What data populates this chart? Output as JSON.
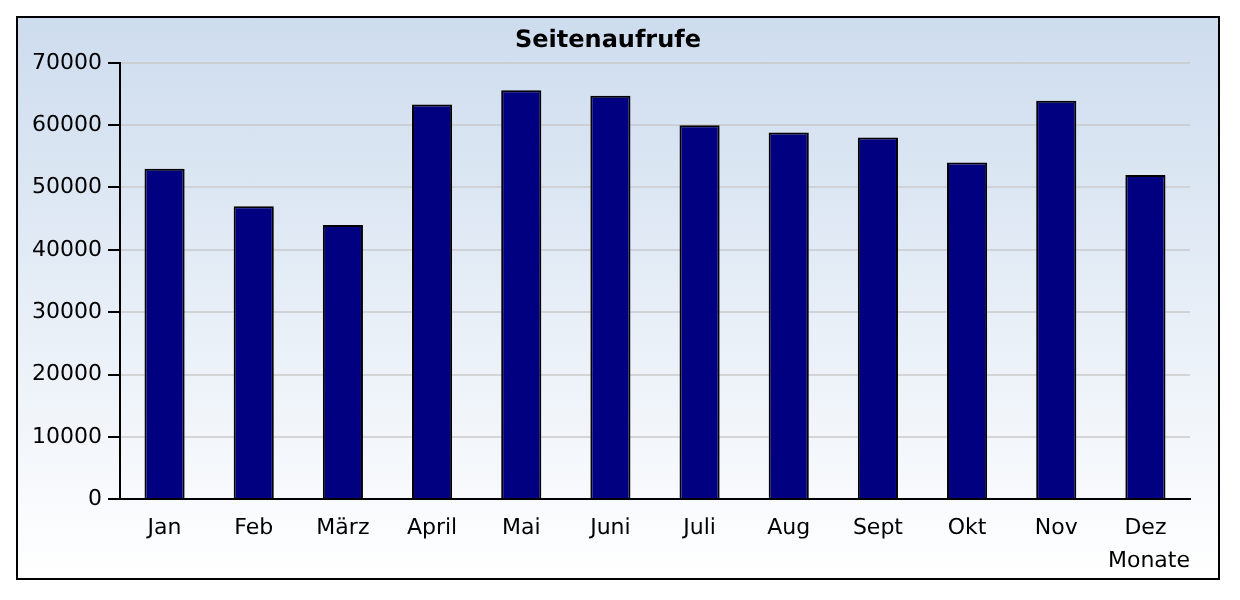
{
  "chart_data": {
    "type": "bar",
    "title": "Seitenaufrufe",
    "xlabel": "Monate",
    "categories": [
      "Jan",
      "Feb",
      "März",
      "April",
      "Mai",
      "Juni",
      "Juli",
      "Aug",
      "Sept",
      "Okt",
      "Nov",
      "Dez"
    ],
    "values": [
      53000,
      47000,
      44000,
      63300,
      65600,
      64700,
      60000,
      58800,
      58000,
      54000,
      63900,
      52000
    ],
    "color": "#000080",
    "ylim": [
      0,
      70000
    ],
    "yticks": [
      0,
      10000,
      20000,
      30000,
      40000,
      50000,
      60000,
      70000
    ],
    "grid": "y",
    "legend": false
  }
}
